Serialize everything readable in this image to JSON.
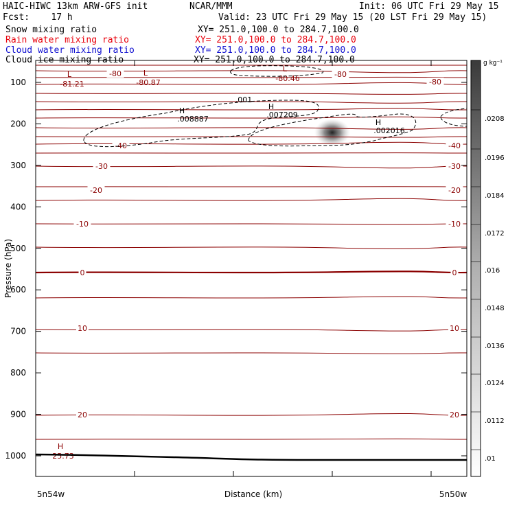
{
  "header": {
    "title": "HAIC-HIWC 13km ARW-GFS init",
    "org": "NCAR/MMM",
    "init": "Init: 06 UTC Fri 29 May 15",
    "fcst": "Fcst:    17 h",
    "valid": "Valid: 23 UTC Fri 29 May 15 (20 LST Fri 29 May 15)"
  },
  "fields": [
    {
      "name": "Snow mixing ratio",
      "xy": "XY= 251.0,100.0 to 284.7,100.0",
      "color": "#000000"
    },
    {
      "name": "Rain water mixing ratio",
      "xy": "XY= 251.0,100.0 to 284.7,100.0",
      "color": "#e8000b"
    },
    {
      "name": "Cloud water mixing ratio",
      "xy": "XY= 251.0,100.0 to 284.7,100.0",
      "color": "#1010d0"
    },
    {
      "name": "Cloud ice mixing ratio",
      "xy": "XY= 251.0,100.0 to 284.7,100.0",
      "color": "#000000"
    }
  ],
  "colors": {
    "temperature": "#8b0000",
    "terrain": "#000000",
    "frame": "#000000"
  },
  "chart_data": {
    "type": "contour",
    "xlabel": "Distance (km)",
    "ylabel": "Pressure (hPa)",
    "x_tick_labels": [
      "5n54w",
      "5n50w"
    ],
    "ylim": [
      50,
      1050
    ],
    "y_ticks": [
      100,
      200,
      300,
      400,
      500,
      600,
      700,
      800,
      900,
      1000
    ],
    "isotherm_levels": [
      -85,
      -80,
      -75,
      -70,
      -65,
      -60,
      -55,
      -50,
      -45,
      -40,
      -35,
      -30,
      -25,
      -20,
      -15,
      -10,
      -5,
      0,
      5,
      10,
      15,
      20,
      25
    ],
    "isotherm_labels_left": [
      {
        "text": "-40",
        "level": -40
      },
      {
        "text": "-30",
        "level": -30
      },
      {
        "text": "-20",
        "level": -20
      },
      {
        "text": "-10",
        "level": -10
      },
      {
        "text": "0",
        "level": 0
      },
      {
        "text": "10",
        "level": 10
      },
      {
        "text": "20",
        "level": 20
      }
    ],
    "isotherm_labels_right": [
      {
        "text": "-80",
        "level": -80
      },
      {
        "text": "-40",
        "level": -40
      },
      {
        "text": "-30",
        "level": -30
      },
      {
        "text": "-20",
        "level": -20
      },
      {
        "text": "-10",
        "level": -10
      },
      {
        "text": "0",
        "level": 0
      },
      {
        "text": "10",
        "level": 10
      },
      {
        "text": "20",
        "level": 20
      }
    ],
    "temp_extrema": [
      {
        "kind": "L",
        "value": "-81.21"
      },
      {
        "kind": "L",
        "value": "-80.87"
      },
      {
        "kind": "L",
        "value": "-80.46"
      },
      {
        "kind": "H",
        "value": "25.73"
      }
    ],
    "inline_labels": [
      "-80",
      "-80",
      "-80"
    ],
    "cloud_ice": {
      "contour_label": ".001",
      "maxima": [
        {
          "kind": "H",
          "value": ".008887"
        },
        {
          "kind": "H",
          "value": ".007209"
        },
        {
          "kind": "H",
          "value": ".002016"
        }
      ]
    },
    "colorbar": {
      "unit": "g kg⁻¹",
      "ticks": [
        ".0208",
        ".0196",
        ".0184",
        ".0172",
        ".016",
        ".0148",
        ".0136",
        ".0124",
        ".0112",
        ".01"
      ]
    }
  }
}
